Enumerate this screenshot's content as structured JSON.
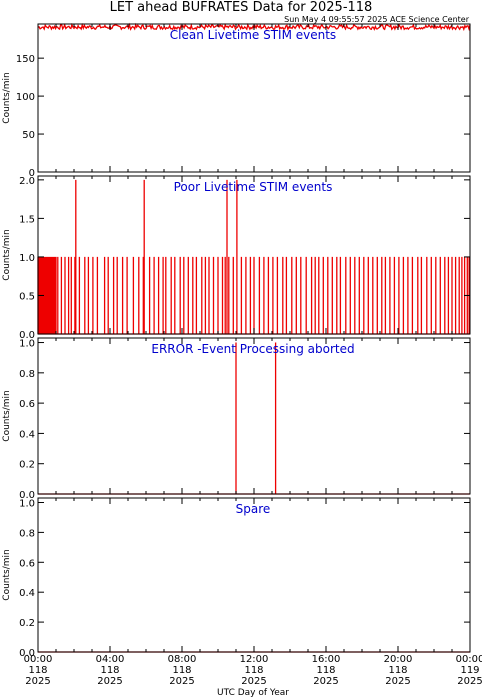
{
  "title": "LET ahead BUFRATES Data for 2025-118",
  "subtitle": "Sun May  4 09:55:57 2025 ACE Science Center",
  "x_axis_label": "UTC Day of Year",
  "colors": {
    "trace": "#ee0000",
    "panel_title": "#0000cc",
    "axis": "#000000"
  },
  "chart_data": [
    {
      "type": "line",
      "title": "Clean Livetime STIM events",
      "ylabel": "Counts/min",
      "ylim": [
        0,
        195
      ],
      "yticks": [
        "0",
        "50",
        "100",
        "150"
      ],
      "series": [
        {
          "pattern": "noisy-high",
          "x_hours": [
            0,
            24
          ],
          "base": 191,
          "noise": 3
        }
      ]
    },
    {
      "type": "line",
      "title": "Poor Livetime STIM events",
      "ylabel": "Counts/min",
      "ylim": [
        0,
        2.05
      ],
      "yticks": [
        "0.0",
        "0.5",
        "1.0",
        "1.5",
        "2.0"
      ],
      "series": [
        {
          "pattern": "spikes",
          "spikes_x_hours": [
            0.0,
            0.05,
            0.1,
            0.15,
            0.2,
            0.25,
            0.3,
            0.35,
            0.4,
            0.45,
            0.5,
            0.55,
            0.6,
            0.65,
            0.7,
            0.75,
            0.8,
            0.85,
            0.9,
            0.95,
            1.0,
            1.1,
            1.3,
            1.5,
            1.7,
            1.85,
            2.05,
            2.3,
            2.6,
            2.8,
            3.05,
            3.3,
            3.7,
            3.9,
            4.2,
            4.4,
            4.7,
            4.95,
            5.3,
            5.6,
            5.85,
            6.2,
            6.45,
            6.7,
            6.95,
            7.1,
            7.4,
            7.6,
            7.9,
            8.1,
            8.35,
            8.6,
            8.8,
            9.1,
            9.3,
            9.5,
            9.75,
            10.0,
            10.25,
            10.4,
            10.6,
            10.85,
            11.05,
            11.3,
            11.55,
            11.8,
            12.0,
            12.3,
            12.55,
            12.8,
            13.05,
            13.3,
            13.6,
            13.8,
            14.1,
            14.35,
            14.6,
            14.9,
            15.2,
            15.4,
            15.6,
            15.85,
            16.1,
            16.35,
            16.6,
            16.8,
            17.1,
            17.35,
            17.6,
            17.85,
            18.1,
            18.35,
            18.6,
            18.85,
            19.1,
            19.3,
            19.55,
            19.8,
            20.05,
            20.3,
            20.55,
            20.8,
            21.1,
            21.3,
            21.6,
            21.85,
            22.1,
            22.35,
            22.6,
            22.8,
            23.0,
            23.2,
            23.4,
            23.55,
            23.7,
            23.85,
            23.95
          ],
          "spike_value": 1,
          "big_spikes_x_hours": [
            2.1,
            5.9,
            10.5,
            11.05
          ],
          "big_spike_value": 2
        }
      ]
    },
    {
      "type": "line",
      "title": "ERROR -Event Processing aborted",
      "ylabel": "Counts/min",
      "ylim": [
        0,
        1.03
      ],
      "yticks": [
        "0.0",
        "0.2",
        "0.4",
        "0.6",
        "0.8",
        "1.0"
      ],
      "series": [
        {
          "pattern": "spikes",
          "spikes_x_hours": [
            11.0,
            13.2
          ],
          "spike_value": 1
        }
      ]
    },
    {
      "type": "line",
      "title": "Spare",
      "ylabel": "Counts/min",
      "ylim": [
        0,
        1.03
      ],
      "yticks": [
        "0.0",
        "0.2",
        "0.4",
        "0.6",
        "0.8",
        "1.0"
      ],
      "series": [
        {
          "pattern": "flat",
          "x_hours": [
            0,
            24
          ],
          "value": 0
        }
      ]
    }
  ],
  "x_ticks": [
    {
      "hour": 0,
      "l1": "00:00",
      "l2": "118",
      "l3": "2025"
    },
    {
      "hour": 4,
      "l1": "04:00",
      "l2": "118",
      "l3": "2025"
    },
    {
      "hour": 8,
      "l1": "08:00",
      "l2": "118",
      "l3": "2025"
    },
    {
      "hour": 12,
      "l1": "12:00",
      "l2": "118",
      "l3": "2025"
    },
    {
      "hour": 16,
      "l1": "16:00",
      "l2": "118",
      "l3": "2025"
    },
    {
      "hour": 20,
      "l1": "20:00",
      "l2": "118",
      "l3": "2025"
    },
    {
      "hour": 24,
      "l1": "00:00",
      "l2": "119",
      "l3": "2025"
    }
  ]
}
